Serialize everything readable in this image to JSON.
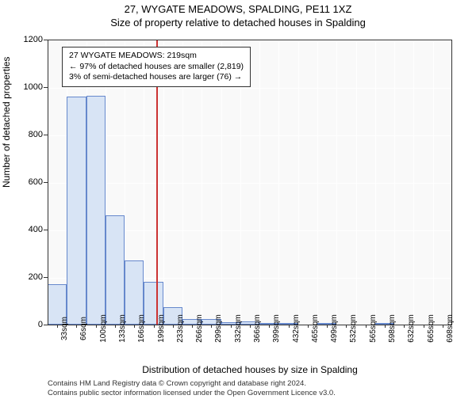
{
  "title": "27, WYGATE MEADOWS, SPALDING, PE11 1XZ",
  "subtitle": "Size of property relative to detached houses in Spalding",
  "ylabel": "Number of detached properties",
  "xlabel": "Distribution of detached houses by size in Spalding",
  "chart": {
    "type": "histogram",
    "ylim": [
      0,
      1200
    ],
    "ytick_step": 200,
    "yticks": [
      0,
      200,
      400,
      600,
      800,
      1000,
      1200
    ],
    "xticks": [
      "33sqm",
      "66sqm",
      "100sqm",
      "133sqm",
      "166sqm",
      "199sqm",
      "233sqm",
      "266sqm",
      "299sqm",
      "332sqm",
      "366sqm",
      "399sqm",
      "432sqm",
      "465sqm",
      "499sqm",
      "532sqm",
      "565sqm",
      "598sqm",
      "632sqm",
      "665sqm",
      "698sqm"
    ],
    "values": [
      170,
      960,
      965,
      460,
      270,
      180,
      75,
      25,
      22,
      10,
      12,
      5,
      8,
      0,
      3,
      0,
      0,
      2,
      0,
      0,
      0
    ],
    "bar_color": "#d8e4f5",
    "bar_border": "#6688cc",
    "background_color": "#f9f9f9",
    "grid_color": "#ffffff",
    "marker_x_index": 5.63,
    "marker_color": "#cc3333"
  },
  "annotation": {
    "line1": "27 WYGATE MEADOWS: 219sqm",
    "line2": "← 97% of detached houses are smaller (2,819)",
    "line3": "3% of semi-detached houses are larger (76) →"
  },
  "copyright": {
    "line1": "Contains HM Land Registry data © Crown copyright and database right 2024.",
    "line2": "Contains public sector information licensed under the Open Government Licence v3.0."
  }
}
